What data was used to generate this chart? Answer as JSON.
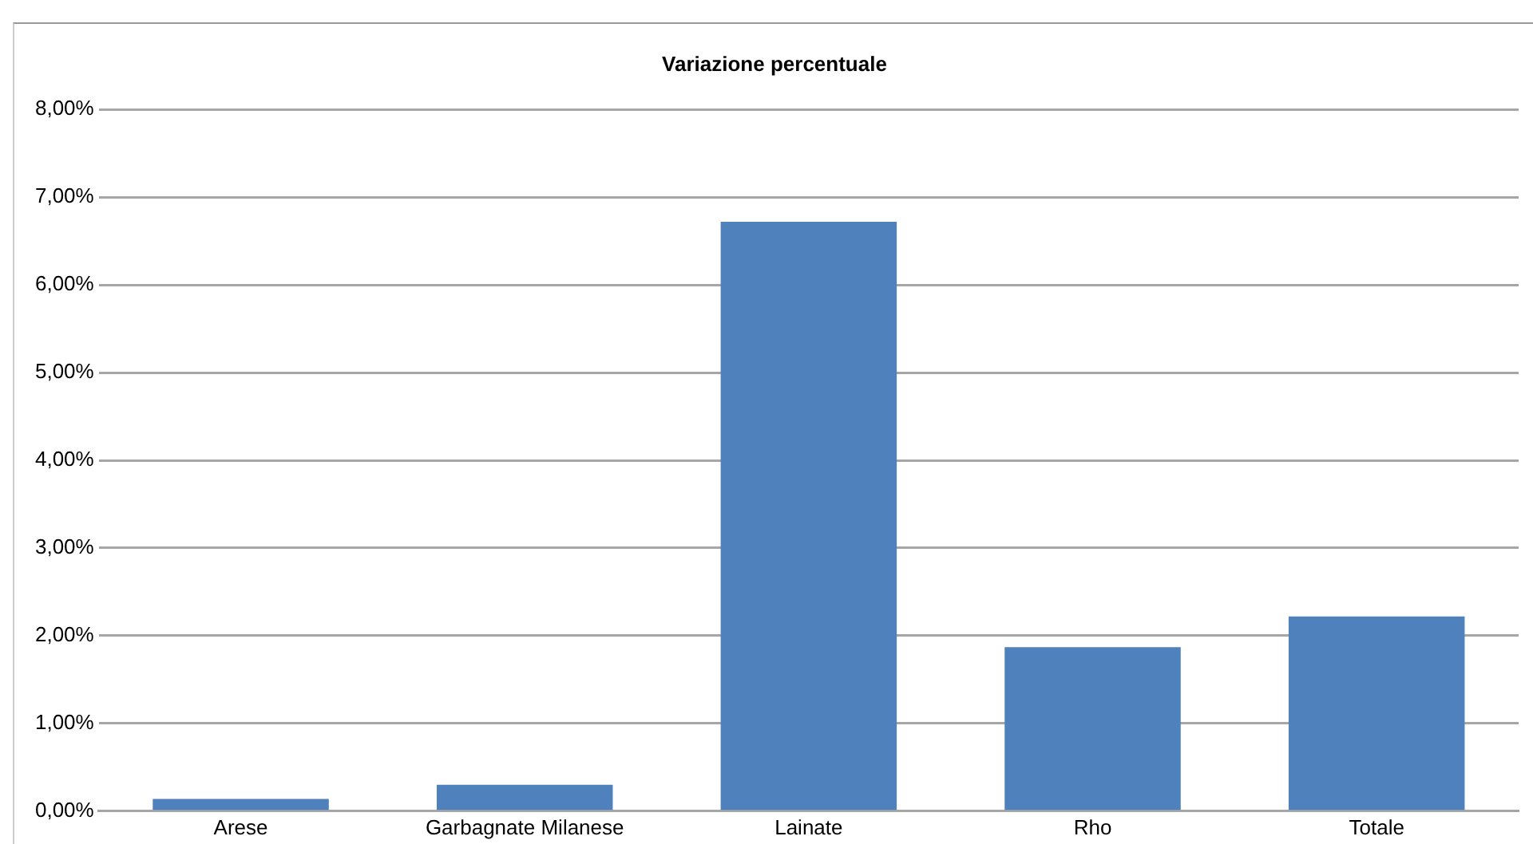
{
  "chart_data": {
    "type": "bar",
    "title": "Variazione percentuale",
    "categories": [
      "Arese",
      "Garbagnate Milanese",
      "Lainate",
      "Rho",
      "Totale"
    ],
    "values": [
      0.14,
      0.3,
      6.72,
      1.87,
      2.22
    ],
    "color": "#4f81bd",
    "ylim": [
      0,
      8
    ],
    "yticks": [
      {
        "value": 0,
        "label": "0,00%"
      },
      {
        "value": 1,
        "label": "1,00%"
      },
      {
        "value": 2,
        "label": "2,00%"
      },
      {
        "value": 3,
        "label": "3,00%"
      },
      {
        "value": 4,
        "label": "4,00%"
      },
      {
        "value": 5,
        "label": "5,00%"
      },
      {
        "value": 6,
        "label": "6,00%"
      },
      {
        "value": 7,
        "label": "7,00%"
      },
      {
        "value": 8,
        "label": "8,00%"
      }
    ],
    "grid": "y"
  }
}
